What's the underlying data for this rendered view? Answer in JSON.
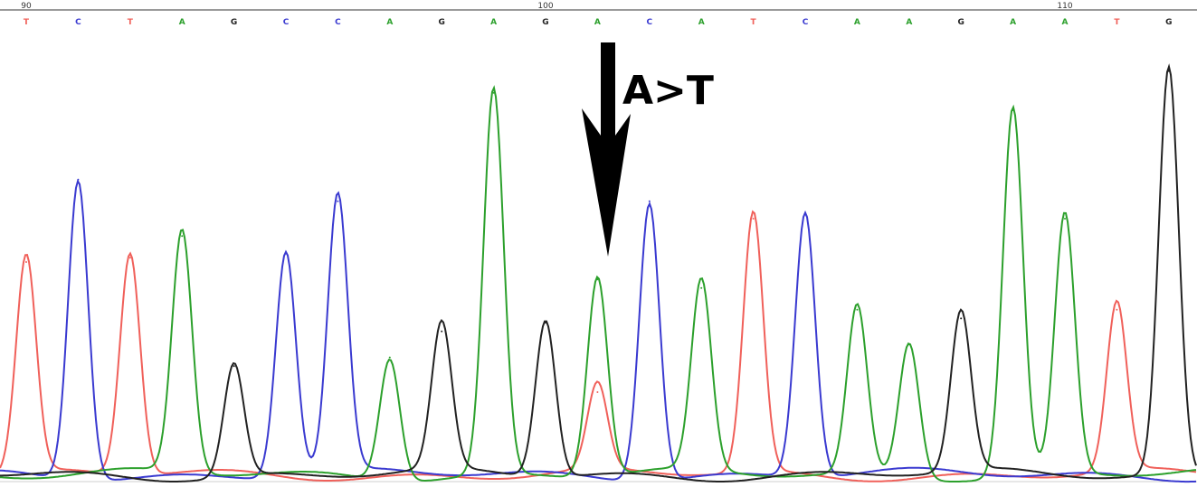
{
  "colors": {
    "A": "#2ca02c",
    "C": "#3a3ad0",
    "G": "#222222",
    "T": "#f0605a"
  },
  "chart_data": {
    "type": "line",
    "title": "",
    "xlabel": "",
    "ylabel": "",
    "x_range": [
      90,
      113
    ],
    "position_ticks": [
      90,
      100,
      110
    ],
    "sequence": [
      "T",
      "C",
      "T",
      "A",
      "G",
      "C",
      "C",
      "A",
      "G",
      "A",
      "G",
      "A",
      "C",
      "A",
      "T",
      "C",
      "A",
      "A",
      "G",
      "A",
      "A",
      "T",
      "G"
    ],
    "series": [
      {
        "base": "T",
        "peaks": [
          [
            90,
            0.5
          ],
          [
            92,
            0.51
          ],
          [
            104,
            0.6
          ],
          [
            101,
            0.2
          ],
          [
            111,
            0.39
          ]
        ]
      },
      {
        "base": "C",
        "peaks": [
          [
            91,
            0.69
          ],
          [
            95,
            0.52
          ],
          [
            96,
            0.64
          ],
          [
            102,
            0.64
          ],
          [
            105,
            0.61
          ]
        ]
      },
      {
        "base": "A",
        "peaks": [
          [
            93,
            0.56
          ],
          [
            97,
            0.28
          ],
          [
            99,
            0.89
          ],
          [
            101,
            0.46
          ],
          [
            103,
            0.44
          ],
          [
            106,
            0.39
          ],
          [
            107,
            0.31
          ],
          [
            109,
            0.85
          ],
          [
            110,
            0.6
          ]
        ]
      },
      {
        "base": "G",
        "peaks": [
          [
            94,
            0.26
          ],
          [
            98,
            0.34
          ],
          [
            100,
            0.36
          ],
          [
            108,
            0.37
          ],
          [
            112,
            0.94
          ]
        ]
      }
    ],
    "annotations": [
      {
        "text": "A>T",
        "position": 101
      }
    ]
  }
}
